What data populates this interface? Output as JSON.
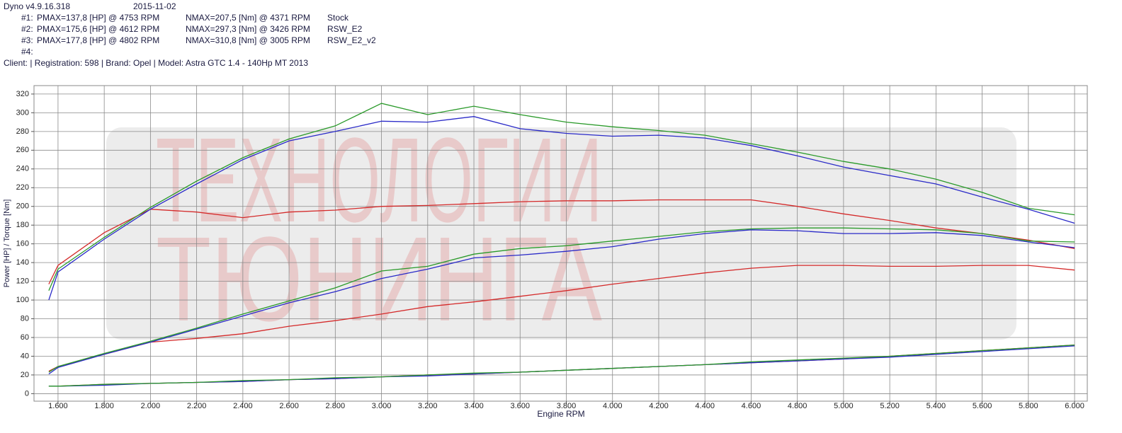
{
  "header": {
    "software": "Dyno v4.9.16.318",
    "date": "2015-11-02",
    "client": "Client:  | Registration: 598 | Brand: Opel | Model: Astra GTC 1.4 - 140Hp MT 2013"
  },
  "watermark": [
    "ТЕХНОЛОГИИ",
    "ТЮНИНГА"
  ],
  "chart_data": {
    "type": "line",
    "xlabel": "Engine RPM",
    "ylabel": "Power [HP] / Torque [Nm]",
    "x": [
      1560,
      1600,
      1800,
      2000,
      2200,
      2400,
      2600,
      2800,
      3000,
      3200,
      3400,
      3600,
      3800,
      4000,
      4200,
      4400,
      4600,
      4800,
      5000,
      5200,
      5400,
      5600,
      5800,
      6000
    ],
    "xlim": [
      1496,
      6055
    ],
    "xticks": [
      {
        "value": 1600,
        "label": "1.600"
      },
      {
        "value": 1800,
        "label": "1.800"
      },
      {
        "value": 2000,
        "label": "2.000"
      },
      {
        "value": 2200,
        "label": "2.200"
      },
      {
        "value": 2400,
        "label": "2.400"
      },
      {
        "value": 2600,
        "label": "2.600"
      },
      {
        "value": 2800,
        "label": "2.800"
      },
      {
        "value": 3000,
        "label": "3.000"
      },
      {
        "value": 3200,
        "label": "3.200"
      },
      {
        "value": 3400,
        "label": "3.400"
      },
      {
        "value": 3600,
        "label": "3.600"
      },
      {
        "value": 3800,
        "label": "3.800"
      },
      {
        "value": 4000,
        "label": "4.000"
      },
      {
        "value": 4200,
        "label": "4.200"
      },
      {
        "value": 4400,
        "label": "4.400"
      },
      {
        "value": 4600,
        "label": "4.600"
      },
      {
        "value": 4800,
        "label": "4.800"
      },
      {
        "value": 5000,
        "label": "5.000"
      },
      {
        "value": 5200,
        "label": "5.200"
      },
      {
        "value": 5400,
        "label": "5.400"
      },
      {
        "value": 5600,
        "label": "5.600"
      },
      {
        "value": 5800,
        "label": "5.800"
      },
      {
        "value": 6000,
        "label": "6.000"
      }
    ],
    "ylim": [
      -8,
      329
    ],
    "yticks": [
      0,
      20,
      40,
      60,
      80,
      100,
      120,
      140,
      160,
      180,
      200,
      220,
      240,
      260,
      280,
      300,
      320
    ],
    "grid": true,
    "series": [
      {
        "label": "#1:",
        "pmax": "PMAX=137,8 [HP] @ 4753 RPM",
        "nmax": "NMAX=207,5 [Nm] @ 4371 RPM",
        "name": "Stock",
        "color": "#d42a2a",
        "torque": [
          117,
          137,
          172,
          197,
          194,
          188,
          194,
          196,
          200,
          201,
          203,
          205,
          206,
          206,
          207,
          207,
          207,
          200,
          192,
          185,
          177,
          171,
          164,
          155
        ],
        "power": [
          24,
          29,
          42,
          55,
          59,
          64,
          72,
          78,
          85,
          93,
          98,
          104,
          110,
          117,
          123,
          129,
          134,
          137,
          137,
          136,
          136,
          137,
          137,
          132
        ],
        "loss": [
          8,
          8,
          10,
          11,
          12,
          13,
          15,
          16,
          18,
          20,
          21,
          23,
          25,
          27,
          29,
          31,
          33,
          35,
          37,
          40,
          43,
          46,
          49,
          52
        ]
      },
      {
        "label": "#2:",
        "pmax": "PMAX=175,6 [HP] @ 4612 RPM",
        "nmax": "NMAX=297,3 [Nm] @ 3426 RPM",
        "name": "RSW_E2",
        "color": "#2a2ac8",
        "torque": [
          100,
          130,
          165,
          197,
          224,
          250,
          270,
          280,
          291,
          290,
          296,
          283,
          278,
          275,
          276,
          273,
          265,
          254,
          242,
          233,
          224,
          210,
          197,
          182
        ],
        "power": [
          21,
          28,
          42,
          55,
          69,
          83,
          97,
          109,
          123,
          133,
          145,
          148,
          152,
          157,
          165,
          171,
          175,
          174,
          171,
          171,
          172,
          169,
          162,
          156
        ],
        "loss": [
          8,
          8,
          9,
          11,
          12,
          13,
          15,
          16,
          18,
          19,
          21,
          23,
          25,
          27,
          29,
          31,
          33,
          35,
          37,
          39,
          42,
          45,
          48,
          51
        ]
      },
      {
        "label": "#3:",
        "pmax": "PMAX=177,8 [HP] @ 4802 RPM",
        "nmax": "NMAX=310,8 [Nm] @ 3005 RPM",
        "name": "RSW_E2_v2",
        "color": "#2a9a2a",
        "torque": [
          110,
          133,
          167,
          199,
          227,
          252,
          272,
          286,
          310,
          298,
          307,
          298,
          290,
          285,
          281,
          276,
          267,
          258,
          248,
          240,
          229,
          215,
          198,
          191
        ],
        "power": [
          23,
          29,
          43,
          56,
          70,
          85,
          99,
          113,
          131,
          136,
          149,
          155,
          158,
          163,
          168,
          173,
          176,
          177,
          177,
          176,
          175,
          171,
          163,
          162
        ],
        "loss": [
          8,
          8,
          10,
          11,
          12,
          14,
          15,
          17,
          18,
          20,
          22,
          23,
          25,
          27,
          29,
          31,
          34,
          36,
          38,
          40,
          43,
          46,
          49,
          52
        ]
      }
    ],
    "empty_runs": [
      "#4:"
    ]
  }
}
